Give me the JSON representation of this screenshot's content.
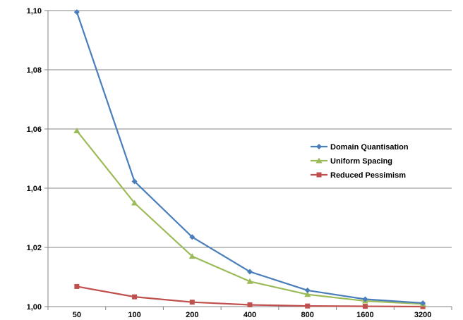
{
  "chart_data": {
    "type": "line",
    "title": "",
    "xlabel": "",
    "ylabel": "",
    "categories": [
      "50",
      "100",
      "200",
      "400",
      "800",
      "1600",
      "3200"
    ],
    "y_tick_labels": [
      "1,00",
      "1,02",
      "1,04",
      "1,06",
      "1,08",
      "1,10"
    ],
    "ylim": [
      1.0,
      1.1
    ],
    "y_ticks": [
      1.0,
      1.02,
      1.04,
      1.06,
      1.08,
      1.1
    ],
    "grid": "horizontal",
    "legend_position": "right",
    "series": [
      {
        "name": "Domain Quantisation",
        "marker": "diamond",
        "color": "#4A7EBB",
        "values": [
          1.0995,
          1.0423,
          1.0235,
          1.0118,
          1.0055,
          1.0025,
          1.0012
        ]
      },
      {
        "name": "Uniform Spacing",
        "marker": "triangle",
        "color": "#9BBB59",
        "values": [
          1.0594,
          1.035,
          1.017,
          1.0085,
          1.0041,
          1.0019,
          1.0009
        ]
      },
      {
        "name": "Reduced Pessimism",
        "marker": "square",
        "color": "#C0504D",
        "values": [
          1.0068,
          1.0033,
          1.0015,
          1.0006,
          1.0002,
          1.0001,
          1.0
        ]
      }
    ]
  }
}
